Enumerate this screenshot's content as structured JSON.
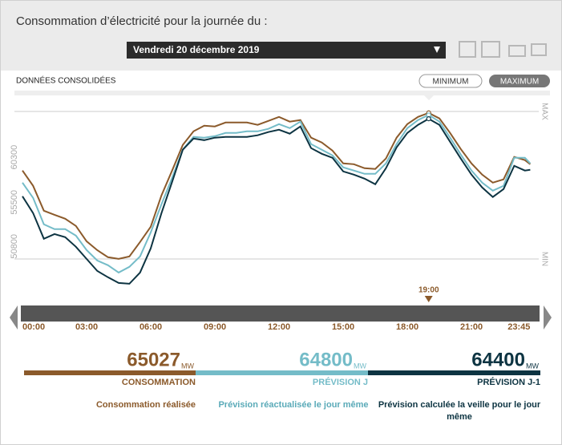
{
  "header": {
    "title": "Consommation d’électricité pour la journée du :",
    "date": "Vendredi 20 décembre 2019"
  },
  "status": "DONNÉES CONSOLIDÉES",
  "buttons": [
    "MINIMUM",
    "MAXIMUM"
  ],
  "chart_data": {
    "type": "line",
    "x": [
      "00:00",
      "00:30",
      "01:00",
      "01:30",
      "02:00",
      "02:30",
      "03:00",
      "03:30",
      "04:00",
      "04:30",
      "05:00",
      "05:30",
      "06:00",
      "06:30",
      "07:00",
      "07:30",
      "08:00",
      "08:30",
      "09:00",
      "09:30",
      "10:00",
      "10:30",
      "11:00",
      "11:30",
      "12:00",
      "12:30",
      "13:00",
      "13:30",
      "14:00",
      "14:30",
      "15:00",
      "15:30",
      "16:00",
      "16:30",
      "17:00",
      "17:30",
      "18:00",
      "18:30",
      "19:00",
      "19:30",
      "20:00",
      "20:30",
      "21:00",
      "21:30",
      "22:00",
      "22:30",
      "23:00",
      "23:30",
      "23:45"
    ],
    "series": [
      {
        "name": "CONSOMMATION",
        "color": "#8b5a2b",
        "values": [
          58880,
          57250,
          54600,
          54170,
          53750,
          52980,
          51350,
          50400,
          49650,
          49470,
          49730,
          51270,
          52890,
          56230,
          58880,
          61610,
          63060,
          63660,
          63580,
          64000,
          64000,
          64000,
          63750,
          64170,
          64600,
          64090,
          64260,
          62380,
          61870,
          61010,
          59640,
          59560,
          59130,
          59050,
          60160,
          62380,
          63830,
          64600,
          65027,
          64430,
          62890,
          61180,
          59640,
          58450,
          57590,
          57940,
          60330,
          59990,
          59560
        ]
      },
      {
        "name": "PRÉVISION J",
        "color": "#74bcc8",
        "values": [
          57590,
          55970,
          53150,
          52640,
          52640,
          51950,
          50410,
          49300,
          48790,
          48020,
          48620,
          49730,
          52290,
          55290,
          58110,
          61100,
          62470,
          62380,
          62550,
          62890,
          62890,
          63060,
          63060,
          63320,
          63830,
          63400,
          64090,
          61700,
          61100,
          60500,
          59220,
          58880,
          58530,
          58530,
          59640,
          61700,
          63400,
          64260,
          64800,
          64090,
          62380,
          60590,
          58880,
          57590,
          56740,
          57250,
          60240,
          60240,
          59640
        ]
      },
      {
        "name": "PRÉVISION J-1",
        "color": "#0d3442",
        "values": [
          56140,
          54350,
          51610,
          52120,
          51780,
          50760,
          49470,
          48190,
          47510,
          46910,
          46820,
          48020,
          50590,
          54350,
          57680,
          61100,
          62290,
          62120,
          62380,
          62470,
          62470,
          62470,
          62640,
          62980,
          63230,
          62810,
          63580,
          61270,
          60670,
          60240,
          58790,
          58450,
          58020,
          57420,
          59130,
          61350,
          62890,
          63750,
          64400,
          63750,
          61950,
          60160,
          58450,
          57080,
          56060,
          56910,
          59390,
          58880,
          58960
        ]
      }
    ],
    "ylim": [
      46300,
      66800
    ],
    "yticks": [
      50800,
      55500,
      60300
    ],
    "max_label": "MAX",
    "min_label": "MIN",
    "xticks": [
      "00:00",
      "03:00",
      "06:00",
      "09:00",
      "12:00",
      "15:00",
      "18:00",
      "21:00",
      "23:45"
    ],
    "cursor": "19:00"
  },
  "summary": [
    {
      "value": 65027,
      "unit": "MW",
      "description": "Consommation réalisée"
    },
    {
      "value": 64800,
      "unit": "MW",
      "description": "Prévision réactualisée le jour même"
    },
    {
      "value": 64400,
      "unit": "MW",
      "description": "Prévision calculée la veille pour le jour même"
    }
  ]
}
